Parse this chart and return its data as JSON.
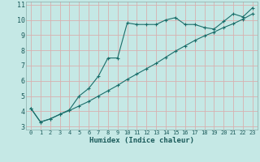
{
  "title": "",
  "xlabel": "Humidex (Indice chaleur)",
  "bg_color": "#c5e8e5",
  "grid_color": "#d8b0b0",
  "line_color": "#1a6e6a",
  "xlim": [
    -0.5,
    23.5
  ],
  "ylim": [
    2.8,
    11.2
  ],
  "yticks": [
    3,
    4,
    5,
    6,
    7,
    8,
    9,
    10,
    11
  ],
  "xticks": [
    0,
    1,
    2,
    3,
    4,
    5,
    6,
    7,
    8,
    9,
    10,
    11,
    12,
    13,
    14,
    15,
    16,
    17,
    18,
    19,
    20,
    21,
    22,
    23
  ],
  "line1_x": [
    0,
    1,
    2,
    3,
    4,
    5,
    6,
    7,
    8,
    9,
    10,
    11,
    12,
    13,
    14,
    15,
    16,
    17,
    18,
    19,
    20,
    21,
    22,
    23
  ],
  "line1_y": [
    4.2,
    3.3,
    3.5,
    3.8,
    4.1,
    5.0,
    5.5,
    6.3,
    7.5,
    7.5,
    9.8,
    9.7,
    9.7,
    9.7,
    10.0,
    10.15,
    9.7,
    9.7,
    9.5,
    9.4,
    9.9,
    10.4,
    10.2,
    10.8
  ],
  "line2_x": [
    0,
    1,
    2,
    3,
    4,
    5,
    6,
    7,
    8,
    9,
    10,
    11,
    12,
    13,
    14,
    15,
    16,
    17,
    18,
    19,
    20,
    21,
    22,
    23
  ],
  "line2_y": [
    4.2,
    3.3,
    3.5,
    3.8,
    4.05,
    4.35,
    4.65,
    5.0,
    5.35,
    5.7,
    6.1,
    6.45,
    6.8,
    7.15,
    7.55,
    7.95,
    8.3,
    8.65,
    8.95,
    9.2,
    9.5,
    9.75,
    10.05,
    10.4
  ]
}
